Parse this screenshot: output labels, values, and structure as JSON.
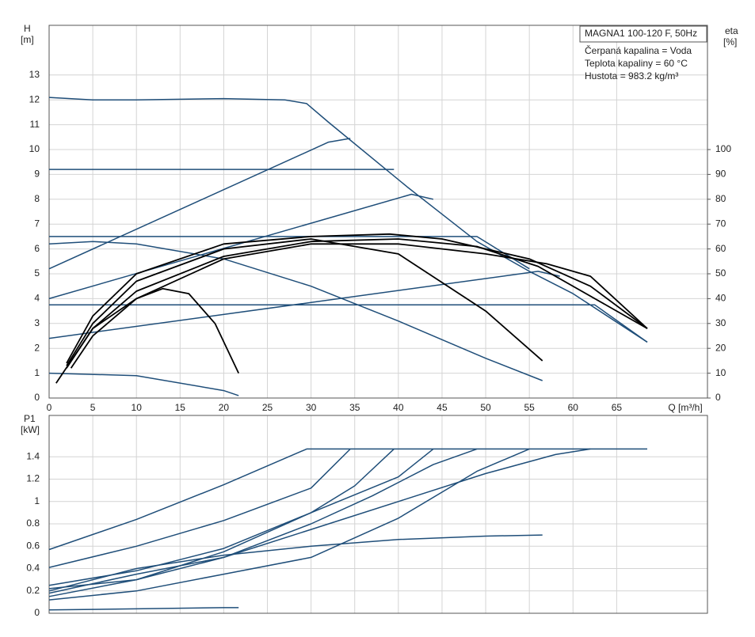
{
  "chart_data": [
    {
      "type": "line",
      "y_label": "H",
      "y_unit": "[m]",
      "y2_label": "eta",
      "y2_unit": "[%]",
      "x_label": "Q [m³/h]",
      "info": [
        "MAGNA1 100-120 F, 50Hz",
        "Čerpaná kapalina = Voda",
        "Teplota kapaliny = 60 °C",
        "Hustota = 983.2 kg/m³"
      ],
      "xlim": [
        0,
        75.4
      ],
      "xticks": [
        0,
        5,
        10,
        15,
        20,
        25,
        30,
        35,
        40,
        45,
        50,
        55,
        60,
        65
      ],
      "ylim": [
        0,
        15
      ],
      "yticks": [
        0,
        1,
        2,
        3,
        4,
        5,
        6,
        7,
        8,
        9,
        10,
        11,
        12,
        13
      ],
      "y2lim": [
        0,
        150
      ],
      "y2ticks": [
        0,
        10,
        20,
        30,
        40,
        50,
        60,
        70,
        80,
        90,
        100
      ],
      "grid": true,
      "xtick_labels": true,
      "series": [
        {
          "color": "#1f4e79",
          "x": [
            0,
            5,
            10,
            20,
            27,
            29.5,
            32,
            41,
            49,
            55,
            60,
            68.5
          ],
          "values": [
            12.1,
            12.0,
            12.0,
            12.05,
            12.0,
            11.85,
            11.1,
            8.5,
            6.3,
            5.1,
            4.2,
            2.25
          ]
        },
        {
          "color": "#1f4e79",
          "x": [
            0,
            39.5
          ],
          "values": [
            9.2,
            9.2
          ]
        },
        {
          "color": "#1f4e79",
          "x": [
            0,
            49,
            55
          ],
          "values": [
            6.5,
            6.5,
            5.2
          ]
        },
        {
          "color": "#1f4e79",
          "x": [
            0,
            62.5,
            68.5
          ],
          "values": [
            3.75,
            3.75,
            2.25
          ]
        },
        {
          "color": "#1f4e79",
          "x": [
            0,
            32,
            34.5
          ],
          "values": [
            5.2,
            10.3,
            10.45
          ]
        },
        {
          "color": "#1f4e79",
          "x": [
            0,
            41.5,
            44
          ],
          "values": [
            4.0,
            8.2,
            8.0
          ]
        },
        {
          "color": "#1f4e79",
          "x": [
            0,
            56,
            58.5
          ],
          "values": [
            2.4,
            5.1,
            4.9
          ]
        },
        {
          "color": "#1f4e79",
          "x": [
            0,
            5,
            10,
            20,
            30,
            40,
            50,
            56.5
          ],
          "values": [
            6.2,
            6.3,
            6.2,
            5.6,
            4.5,
            3.1,
            1.6,
            0.7
          ]
        },
        {
          "color": "#1f4e79",
          "x": [
            0,
            10,
            20,
            21.7
          ],
          "values": [
            1.0,
            0.9,
            0.3,
            0.1
          ]
        },
        {
          "color": "#000000",
          "axis": "y2",
          "x": [
            0.8,
            5,
            10,
            13,
            16,
            19,
            21.7
          ],
          "values": [
            6,
            28,
            40,
            44,
            42,
            30,
            10
          ]
        },
        {
          "color": "#000000",
          "axis": "y2",
          "x": [
            2,
            5,
            10,
            20,
            30,
            40,
            50,
            56.5
          ],
          "values": [
            13,
            30,
            47,
            60,
            64,
            58,
            35,
            15
          ]
        },
        {
          "color": "#000000",
          "axis": "y2",
          "x": [
            2,
            5,
            10,
            20,
            30,
            39,
            45,
            55,
            62,
            68.5
          ],
          "values": [
            14,
            33,
            50,
            62,
            65,
            66,
            64,
            56,
            45,
            28
          ]
        },
        {
          "color": "#000000",
          "axis": "y2",
          "x": [
            2,
            5,
            10,
            20,
            30,
            40,
            49,
            56,
            68.5
          ],
          "values": [
            12,
            28,
            43,
            57,
            63,
            64,
            61,
            53,
            28
          ]
        },
        {
          "color": "#000000",
          "axis": "y2",
          "x": [
            2.5,
            5,
            10,
            20,
            30,
            40,
            50,
            57,
            62,
            68.5
          ],
          "values": [
            12,
            25,
            40,
            56,
            62,
            62,
            58,
            54,
            49,
            28
          ]
        }
      ]
    },
    {
      "type": "line",
      "y_label": "P1",
      "y_unit": "[kW]",
      "xlim": [
        0,
        75.4
      ],
      "xticks": [
        0,
        5,
        10,
        15,
        20,
        25,
        30,
        35,
        40,
        45,
        50,
        55,
        60,
        65
      ],
      "ylim": [
        0,
        1.77
      ],
      "yticks": [
        0,
        0.2,
        0.4,
        0.6,
        0.8,
        1.0,
        1.2,
        1.4
      ],
      "grid": true,
      "xtick_labels": false,
      "series": [
        {
          "color": "#1f4e79",
          "x": [
            0,
            10,
            20,
            29.5,
            68.5
          ],
          "values": [
            0.57,
            0.84,
            1.15,
            1.47,
            1.47
          ]
        },
        {
          "color": "#1f4e79",
          "x": [
            0,
            10,
            20,
            30,
            34.5
          ],
          "values": [
            0.41,
            0.6,
            0.83,
            1.12,
            1.47
          ]
        },
        {
          "color": "#1f4e79",
          "x": [
            0,
            10,
            20,
            30,
            40,
            44
          ],
          "values": [
            0.25,
            0.38,
            0.58,
            0.9,
            1.22,
            1.47
          ]
        },
        {
          "color": "#1f4e79",
          "x": [
            0,
            10,
            20,
            30,
            40,
            49,
            55
          ],
          "values": [
            0.12,
            0.2,
            0.35,
            0.5,
            0.85,
            1.27,
            1.47
          ]
        },
        {
          "color": "#1f4e79",
          "x": [
            0,
            10,
            20,
            30,
            37,
            44,
            49
          ],
          "values": [
            0.15,
            0.3,
            0.5,
            0.8,
            1.05,
            1.33,
            1.47
          ]
        },
        {
          "color": "#1f4e79",
          "x": [
            0,
            10,
            20,
            30,
            35,
            39.5
          ],
          "values": [
            0.22,
            0.3,
            0.55,
            0.9,
            1.14,
            1.47
          ]
        },
        {
          "color": "#1f4e79",
          "x": [
            0,
            10,
            20,
            30,
            40,
            50,
            58,
            62
          ],
          "values": [
            0.18,
            0.35,
            0.5,
            0.75,
            1.0,
            1.25,
            1.42,
            1.47
          ]
        },
        {
          "color": "#1f4e79",
          "x": [
            0,
            10,
            20,
            30,
            40,
            50,
            56.5
          ],
          "values": [
            0.2,
            0.4,
            0.52,
            0.6,
            0.66,
            0.69,
            0.7
          ]
        },
        {
          "color": "#1f4e79",
          "x": [
            0,
            10,
            20,
            21.7
          ],
          "values": [
            0.03,
            0.04,
            0.05,
            0.05
          ]
        }
      ]
    }
  ]
}
